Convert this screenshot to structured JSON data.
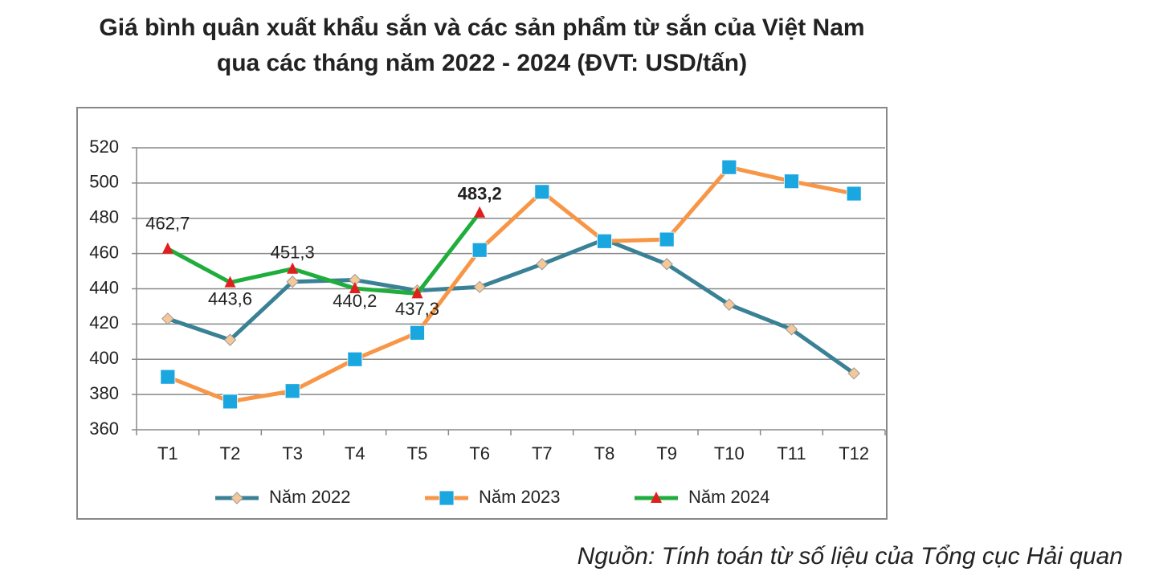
{
  "chart_data": {
    "type": "line",
    "title": [
      "Giá bình quân xuất khẩu sắn và các sản phẩm từ sắn của Việt Nam",
      "qua các tháng năm 2022 - 2024 (ĐVT: USD/tấn)"
    ],
    "categories": [
      "T1",
      "T2",
      "T3",
      "T4",
      "T5",
      "T6",
      "T7",
      "T8",
      "T9",
      "T10",
      "T11",
      "T12"
    ],
    "series": [
      {
        "name": "Năm 2022",
        "color": "#3a8196",
        "marker": "diamond",
        "marker_color": "#f5c89a",
        "values": [
          423,
          411,
          444,
          445,
          439,
          441,
          454,
          468,
          454,
          431,
          417,
          392
        ]
      },
      {
        "name": "Năm 2023",
        "color": "#f79646",
        "marker": "square",
        "marker_color": "#1aa7e0",
        "values": [
          390,
          376,
          382,
          400,
          415,
          462,
          495,
          467,
          468,
          509,
          501,
          494
        ]
      },
      {
        "name": "Năm 2024",
        "color": "#1fad3c",
        "marker": "triangle",
        "marker_color": "#e02020",
        "values": [
          462.7,
          443.6,
          451.3,
          440.2,
          437.3,
          483.2,
          null,
          null,
          null,
          null,
          null,
          null
        ],
        "value_labels": [
          "462,7",
          "443,6",
          "451,3",
          "440,2",
          "437,3",
          "483,2",
          null,
          null,
          null,
          null,
          null,
          null
        ]
      }
    ],
    "ylim": [
      360,
      520
    ],
    "yticks": [
      360,
      380,
      400,
      420,
      440,
      460,
      480,
      500,
      520
    ],
    "grid": true,
    "legend": "bottom",
    "source": "Nguồn: Tính toán từ số liệu của Tổng cục Hải quan"
  }
}
